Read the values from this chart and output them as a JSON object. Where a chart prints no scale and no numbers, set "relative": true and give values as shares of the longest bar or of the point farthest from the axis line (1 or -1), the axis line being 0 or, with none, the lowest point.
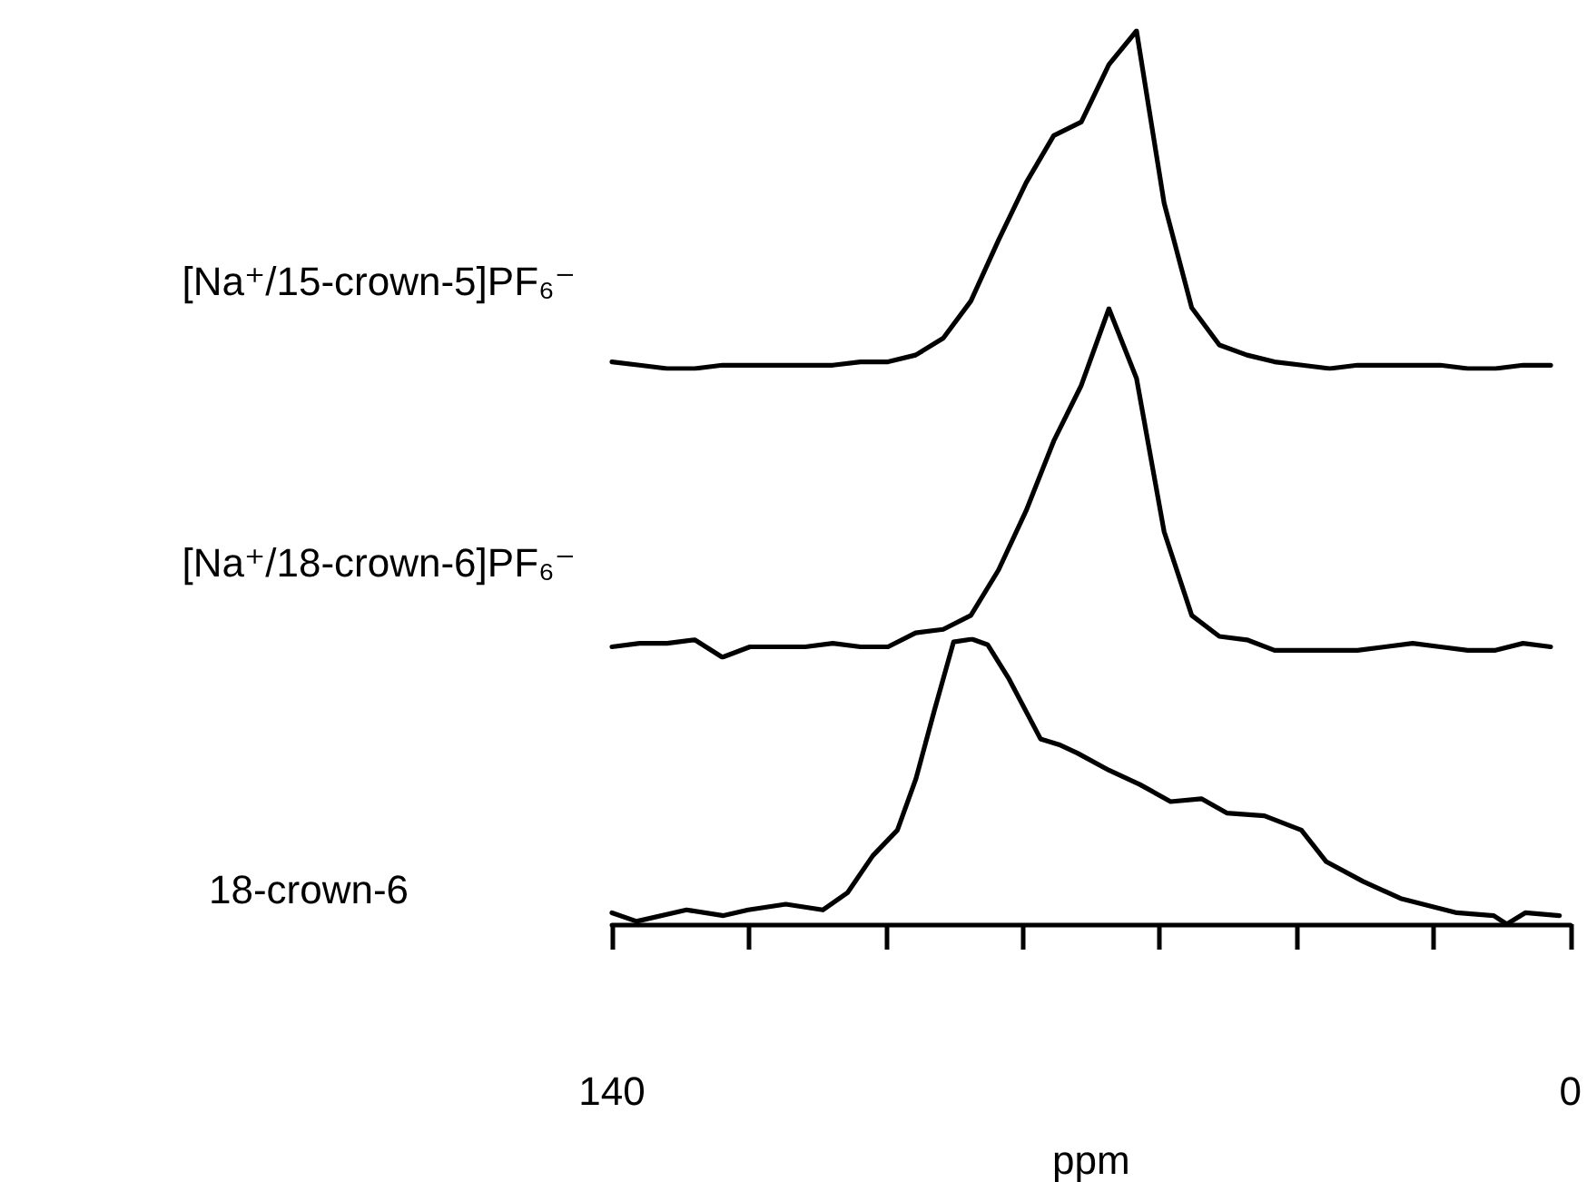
{
  "chart_data": [
    {
      "type": "line",
      "relative": true,
      "tick_labels": false,
      "marker": "none",
      "line_style": "solid",
      "categories": [
        null,
        null,
        null,
        null,
        null,
        null,
        null,
        null,
        null,
        null,
        null,
        null,
        null,
        null,
        null,
        null,
        null,
        null,
        null,
        null,
        null,
        null,
        null,
        null,
        null,
        null,
        null,
        null,
        null,
        null,
        null,
        null,
        null,
        null,
        null
      ],
      "series": [
        {
          "name": "[Na⁺/15-crown-5]PF₆⁻",
          "color": "#000000",
          "values": [
            0.02,
            0.01,
            0.0,
            0.0,
            0.01,
            0.01,
            0.01,
            0.01,
            0.01,
            0.02,
            0.02,
            0.04,
            0.09,
            0.2,
            0.38,
            0.55,
            0.69,
            0.73,
            0.9,
            1.0,
            0.49,
            0.18,
            0.07,
            0.04,
            0.02,
            0.01,
            0.0,
            0.01,
            0.01,
            0.01,
            0.01,
            0.0,
            0.0,
            0.01,
            0.01
          ]
        }
      ]
    },
    {
      "type": "line",
      "relative": true,
      "tick_labels": false,
      "marker": "none",
      "line_style": "solid",
      "categories": [
        null,
        null,
        null,
        null,
        null,
        null,
        null,
        null,
        null,
        null,
        null,
        null,
        null,
        null,
        null,
        null,
        null,
        null,
        null,
        null,
        null,
        null,
        null,
        null,
        null,
        null,
        null,
        null,
        null,
        null,
        null,
        null,
        null,
        null,
        null
      ],
      "series": [
        {
          "name": "[Na⁺/18-crown-6]PF₆⁻",
          "color": "#000000",
          "values": [
            0.03,
            0.04,
            0.04,
            0.05,
            0.0,
            0.03,
            0.03,
            0.03,
            0.04,
            0.03,
            0.03,
            0.07,
            0.08,
            0.12,
            0.25,
            0.42,
            0.62,
            0.78,
            1.0,
            0.8,
            0.36,
            0.12,
            0.06,
            0.05,
            0.02,
            0.02,
            0.02,
            0.02,
            0.03,
            0.04,
            0.03,
            0.02,
            0.02,
            0.04,
            0.03
          ]
        }
      ]
    },
    {
      "type": "line",
      "relative": true,
      "xlim": [
        140,
        0
      ],
      "xlabel": "ppm",
      "marker": "none",
      "line_style": "solid",
      "xticks": [
        140,
        {
          "value": 120,
          "label": null
        },
        {
          "value": 100,
          "label": null
        },
        {
          "value": 80,
          "label": null
        },
        {
          "value": 60,
          "label": null
        },
        {
          "value": 40,
          "label": null
        },
        {
          "value": 20,
          "label": null
        },
        0
      ],
      "x": [
        140,
        136.4,
        129.1,
        123.7,
        120.1,
        114.6,
        109.2,
        105.6,
        101.9,
        98.3,
        95.6,
        92.9,
        90.1,
        87.4,
        85.1,
        82.0,
        77.4,
        74.7,
        72.0,
        67.4,
        62.9,
        58.4,
        53.9,
        50.2,
        44.7,
        39.3,
        35.7,
        30.3,
        24.8,
        16.6,
        11.2,
        9.3,
        6.6,
        1.6
      ],
      "series": [
        {
          "name": "18-crown-6",
          "color": "#000000",
          "values": [
            0.04,
            0.01,
            0.05,
            0.03,
            0.05,
            0.07,
            0.05,
            0.11,
            0.24,
            0.33,
            0.51,
            0.75,
            0.99,
            1.0,
            0.98,
            0.86,
            0.65,
            0.63,
            0.6,
            0.54,
            0.49,
            0.43,
            0.44,
            0.39,
            0.38,
            0.33,
            0.22,
            0.15,
            0.09,
            0.04,
            0.03,
            0.0,
            0.04,
            0.03
          ]
        }
      ]
    }
  ]
}
